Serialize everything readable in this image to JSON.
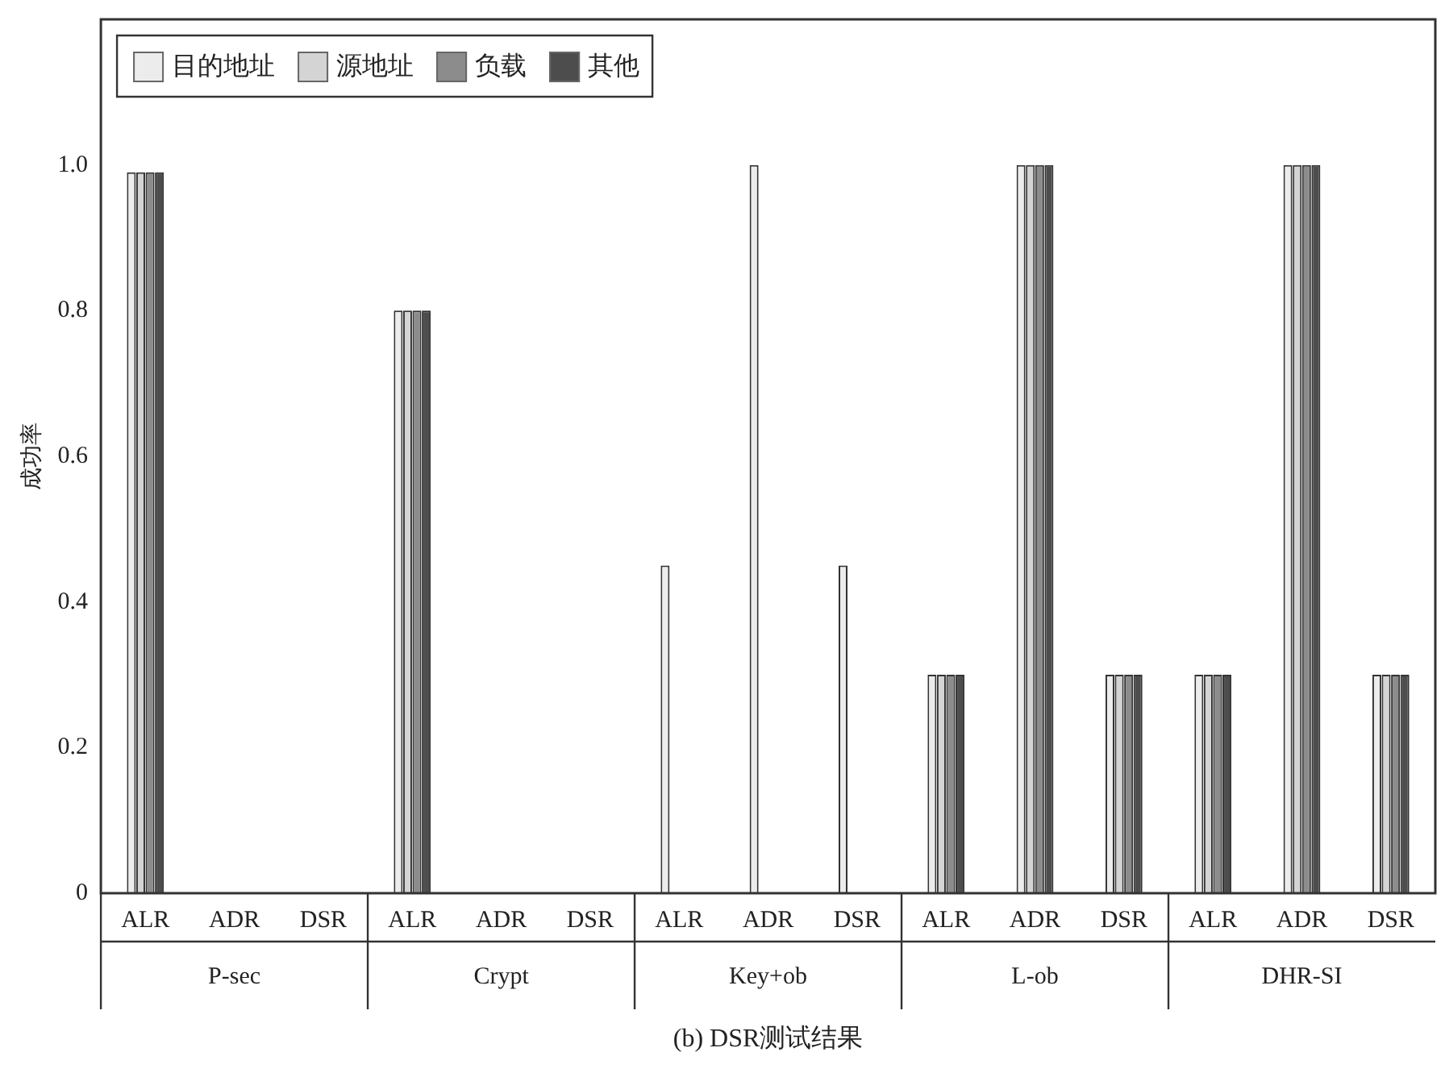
{
  "chart_data": {
    "type": "bar",
    "title": "(b) DSR测试结果",
    "ylabel": "成功率",
    "categories": [
      "ALR",
      "ADR",
      "DSR",
      "ALR",
      "ADR",
      "DSR",
      "ALR",
      "ADR",
      "DSR",
      "ALR",
      "ADR",
      "DSR",
      "ALR",
      "ADR",
      "DSR"
    ],
    "annotations": [
      "P-sec",
      "Crypt",
      "Key+ob",
      "L-ob",
      "DHR-SI"
    ],
    "series": [
      {
        "name": "目的地址",
        "color": "#ececec",
        "values": [
          0.99,
          0,
          0,
          0.8,
          0,
          0,
          0.45,
          1.0,
          0.45,
          0.3,
          1.0,
          0.3,
          0.3,
          1.0,
          0.3
        ]
      },
      {
        "name": "源地址",
        "color": "#d4d4d4",
        "values": [
          0.99,
          0,
          0,
          0.8,
          0,
          0,
          0,
          0,
          0,
          0.3,
          1.0,
          0.3,
          0.3,
          1.0,
          0.3
        ]
      },
      {
        "name": "负载",
        "color": "#8c8c8c",
        "values": [
          0.99,
          0,
          0,
          0.8,
          0,
          0,
          0,
          0,
          0,
          0.3,
          1.0,
          0.3,
          0.3,
          1.0,
          0.3
        ]
      },
      {
        "name": "其他",
        "color": "#4d4d4d",
        "values": [
          0.99,
          0,
          0,
          0.8,
          0,
          0,
          0,
          0,
          0,
          0.3,
          1.0,
          0.3,
          0.3,
          1.0,
          0.3
        ]
      }
    ],
    "ylim": [
      0,
      1.2
    ],
    "yticks": [
      0,
      0.2,
      0.4,
      0.6,
      0.8,
      {
        "value": 1.0,
        "label": "1.0"
      }
    ],
    "grid": false,
    "legend": "top left"
  }
}
